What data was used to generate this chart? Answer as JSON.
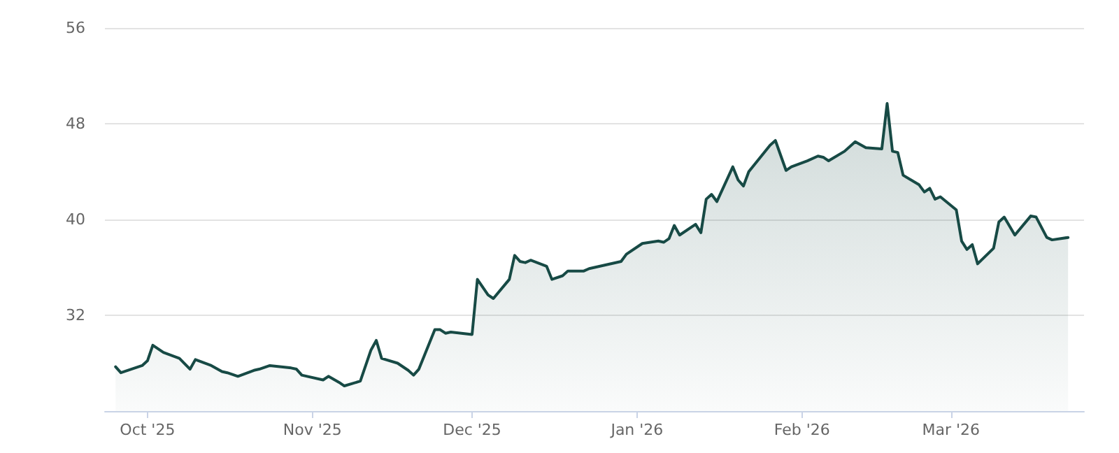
{
  "chart_data": {
    "type": "area",
    "x": [
      "2025-09-25",
      "2025-09-26",
      "2025-09-30",
      "2025-10-01",
      "2025-10-02",
      "2025-10-04",
      "2025-10-07",
      "2025-10-09",
      "2025-10-10",
      "2025-10-13",
      "2025-10-15",
      "2025-10-16",
      "2025-10-18",
      "2025-10-21",
      "2025-10-22",
      "2025-10-24",
      "2025-10-28",
      "2025-10-29",
      "2025-10-30",
      "2025-11-03",
      "2025-11-04",
      "2025-11-06",
      "2025-11-07",
      "2025-11-10",
      "2025-11-12",
      "2025-11-13",
      "2025-11-14",
      "2025-11-17",
      "2025-11-19",
      "2025-11-20",
      "2025-11-21",
      "2025-11-24",
      "2025-11-25",
      "2025-11-26",
      "2025-11-27",
      "2025-12-01",
      "2025-12-02",
      "2025-12-04",
      "2025-12-05",
      "2025-12-08",
      "2025-12-09",
      "2025-12-10",
      "2025-12-11",
      "2025-12-12",
      "2025-12-15",
      "2025-12-16",
      "2025-12-18",
      "2025-12-19",
      "2025-12-22",
      "2025-12-23",
      "2025-12-29",
      "2025-12-30",
      "2026-01-02",
      "2026-01-05",
      "2026-01-06",
      "2026-01-07",
      "2026-01-08",
      "2026-01-09",
      "2026-01-12",
      "2026-01-13",
      "2026-01-14",
      "2026-01-15",
      "2026-01-16",
      "2026-01-19",
      "2026-01-20",
      "2026-01-21",
      "2026-01-22",
      "2026-01-26",
      "2026-01-27",
      "2026-01-29",
      "2026-01-30",
      "2026-02-02",
      "2026-02-04",
      "2026-02-05",
      "2026-02-06",
      "2026-02-09",
      "2026-02-11",
      "2026-02-13",
      "2026-02-16",
      "2026-02-17",
      "2026-02-18",
      "2026-02-19",
      "2026-02-20",
      "2026-02-23",
      "2026-02-24",
      "2026-02-25",
      "2026-02-26",
      "2026-02-27",
      "2026-03-02",
      "2026-03-03",
      "2026-03-04",
      "2026-03-05",
      "2026-03-06",
      "2026-03-09",
      "2026-03-10",
      "2026-03-11",
      "2026-03-13",
      "2026-03-16",
      "2026-03-17",
      "2026-03-19",
      "2026-03-20",
      "2026-03-23"
    ],
    "series": [
      {
        "color": "#174a45",
        "values": [
          27.7,
          27.2,
          27.8,
          28.2,
          29.5,
          28.9,
          28.4,
          27.5,
          28.3,
          27.8,
          27.3,
          27.2,
          26.9,
          27.4,
          27.5,
          27.8,
          27.6,
          27.5,
          27.0,
          26.6,
          26.9,
          26.4,
          26.1,
          26.5,
          29.1,
          29.9,
          28.4,
          28.0,
          27.4,
          27.0,
          27.5,
          30.8,
          30.8,
          30.5,
          30.6,
          30.4,
          35.0,
          33.7,
          33.4,
          35.0,
          37.0,
          36.5,
          36.4,
          36.6,
          36.1,
          35.0,
          35.3,
          35.7,
          35.7,
          35.9,
          36.5,
          37.1,
          38.0,
          38.2,
          38.1,
          38.4,
          39.5,
          38.7,
          39.6,
          38.9,
          41.7,
          42.1,
          41.5,
          44.4,
          43.3,
          42.8,
          44.0,
          46.2,
          46.6,
          44.1,
          44.4,
          44.9,
          45.3,
          45.2,
          44.9,
          45.7,
          46.5,
          46.0,
          45.9,
          49.7,
          45.7,
          45.6,
          43.7,
          42.9,
          42.3,
          42.6,
          41.7,
          41.9,
          40.8,
          38.2,
          37.5,
          37.9,
          36.3,
          37.6,
          39.8,
          40.2,
          38.7,
          40.3,
          40.2,
          38.5,
          38.3,
          38.5
        ]
      }
    ],
    "xlim": [
      "2025-09-23",
      "2026-03-26"
    ],
    "xticks": [
      {
        "value": "2025-10-01",
        "label": "Oct '25"
      },
      {
        "value": "2025-11-01",
        "label": "Nov '25"
      },
      {
        "value": "2025-12-01",
        "label": "Dec '25"
      },
      {
        "value": "2026-01-01",
        "label": "Jan '26"
      },
      {
        "value": "2026-02-01",
        "label": "Feb '26"
      },
      {
        "value": "2026-03-01",
        "label": "Mar '26"
      }
    ],
    "ylim": [
      24,
      56
    ],
    "yticks": [
      32,
      40,
      48,
      56
    ],
    "grid": "y",
    "marker": "none",
    "line_style": "solid"
  }
}
